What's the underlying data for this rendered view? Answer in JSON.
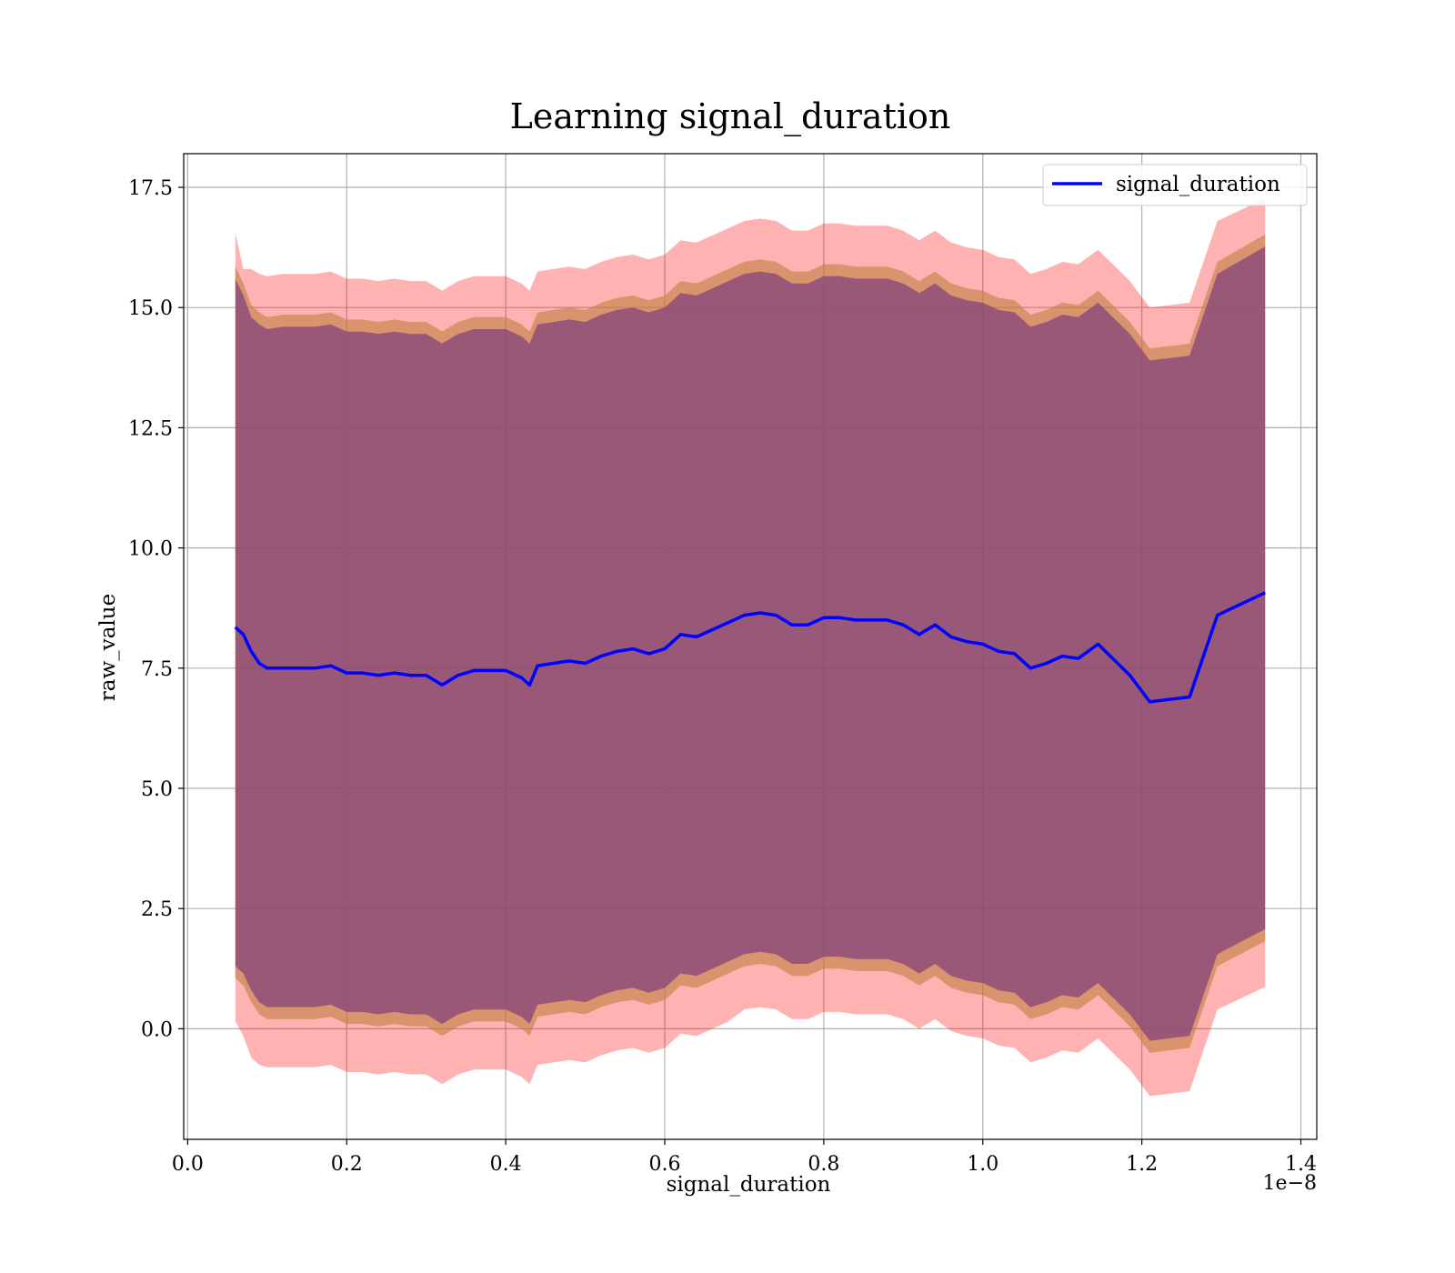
{
  "chart_data": {
    "type": "line",
    "title": "Learning signal_duration",
    "xlabel": "signal_duration",
    "ylabel": "raw_value",
    "x_offset_label": "1e−8",
    "xlim": [
      -0.005,
      1.42
    ],
    "ylim": [
      -2.3,
      18.2
    ],
    "x_ticks": [
      0.0,
      0.2,
      0.4,
      0.6,
      0.8,
      1.0,
      1.2,
      1.4
    ],
    "x_tick_labels": [
      "0.0",
      "0.2",
      "0.4",
      "0.6",
      "0.8",
      "1.0",
      "1.2",
      "1.4"
    ],
    "y_ticks": [
      0.0,
      2.5,
      5.0,
      7.5,
      10.0,
      12.5,
      15.0,
      17.5
    ],
    "y_tick_labels": [
      "0.0",
      "2.5",
      "5.0",
      "7.5",
      "10.0",
      "12.5",
      "15.0",
      "17.5"
    ],
    "grid": true,
    "legend_position": "top-right",
    "colors": {
      "line": "#0000ff",
      "band_outer": "#ff0000",
      "band_middle": "#bf7f3f",
      "band_inner": "#7f3f7f"
    },
    "series": [
      {
        "name": "signal_duration",
        "x": [
          0.06,
          0.07,
          0.08,
          0.09,
          0.1,
          0.12,
          0.14,
          0.16,
          0.18,
          0.2,
          0.22,
          0.24,
          0.26,
          0.28,
          0.3,
          0.32,
          0.34,
          0.36,
          0.38,
          0.4,
          0.42,
          0.43,
          0.44,
          0.46,
          0.48,
          0.5,
          0.52,
          0.54,
          0.56,
          0.58,
          0.6,
          0.62,
          0.64,
          0.66,
          0.68,
          0.7,
          0.72,
          0.74,
          0.76,
          0.78,
          0.8,
          0.82,
          0.84,
          0.86,
          0.88,
          0.9,
          0.92,
          0.94,
          0.96,
          0.98,
          1.0,
          1.02,
          1.04,
          1.06,
          1.08,
          1.1,
          1.12,
          1.145,
          1.185,
          1.21,
          1.26,
          1.295,
          1.355
        ],
        "y": [
          8.35,
          8.2,
          7.85,
          7.6,
          7.5,
          7.5,
          7.5,
          7.5,
          7.55,
          7.4,
          7.4,
          7.35,
          7.4,
          7.35,
          7.35,
          7.15,
          7.35,
          7.45,
          7.45,
          7.45,
          7.3,
          7.15,
          7.55,
          7.6,
          7.65,
          7.6,
          7.75,
          7.85,
          7.9,
          7.8,
          7.9,
          8.2,
          8.15,
          8.3,
          8.45,
          8.6,
          8.65,
          8.6,
          8.4,
          8.4,
          8.55,
          8.55,
          8.5,
          8.5,
          8.5,
          8.4,
          8.2,
          8.4,
          8.15,
          8.05,
          8.0,
          7.85,
          7.8,
          7.5,
          7.6,
          7.75,
          7.7,
          8.0,
          7.35,
          6.8,
          6.9,
          8.6,
          9.07
        ]
      }
    ],
    "bands": [
      {
        "label": "outer",
        "offset_upper": [
          8.2,
          7.6,
          7.95,
          8.1,
          8.15,
          8.2,
          8.2,
          8.2,
          8.2,
          8.2,
          8.2,
          8.2,
          8.2,
          8.2,
          8.2,
          8.2,
          8.2,
          8.2,
          8.2,
          8.2,
          8.2,
          8.2,
          8.2,
          8.2,
          8.2,
          8.2,
          8.2,
          8.2,
          8.2,
          8.2,
          8.2,
          8.2,
          8.2,
          8.2,
          8.2,
          8.2,
          8.2,
          8.2,
          8.2,
          8.2,
          8.2,
          8.2,
          8.2,
          8.2,
          8.2,
          8.2,
          8.2,
          8.2,
          8.2,
          8.2,
          8.2,
          8.2,
          8.2,
          8.2,
          8.2,
          8.2,
          8.2,
          8.2,
          8.2,
          8.2,
          8.2,
          8.2,
          8.2
        ],
        "offset_lower": [
          8.2,
          8.35,
          8.45,
          8.35,
          8.3,
          8.3,
          8.3,
          8.3,
          8.3,
          8.3,
          8.3,
          8.3,
          8.3,
          8.3,
          8.3,
          8.3,
          8.3,
          8.3,
          8.3,
          8.3,
          8.3,
          8.3,
          8.3,
          8.3,
          8.3,
          8.3,
          8.3,
          8.3,
          8.3,
          8.3,
          8.3,
          8.3,
          8.3,
          8.3,
          8.3,
          8.2,
          8.2,
          8.2,
          8.2,
          8.2,
          8.2,
          8.2,
          8.2,
          8.2,
          8.2,
          8.2,
          8.2,
          8.2,
          8.2,
          8.2,
          8.2,
          8.2,
          8.2,
          8.2,
          8.2,
          8.2,
          8.2,
          8.2,
          8.2,
          8.2,
          8.2,
          8.2,
          8.2
        ]
      },
      {
        "label": "middle",
        "offset_upper": [
          7.5,
          7.3,
          7.2,
          7.3,
          7.3,
          7.35,
          7.35,
          7.35,
          7.35,
          7.35,
          7.35,
          7.35,
          7.35,
          7.35,
          7.35,
          7.35,
          7.35,
          7.35,
          7.35,
          7.35,
          7.35,
          7.35,
          7.35,
          7.35,
          7.35,
          7.35,
          7.35,
          7.35,
          7.35,
          7.35,
          7.35,
          7.35,
          7.35,
          7.35,
          7.35,
          7.35,
          7.35,
          7.35,
          7.35,
          7.35,
          7.35,
          7.35,
          7.35,
          7.35,
          7.35,
          7.35,
          7.35,
          7.35,
          7.35,
          7.35,
          7.35,
          7.35,
          7.35,
          7.35,
          7.35,
          7.35,
          7.35,
          7.35,
          7.35,
          7.35,
          7.35,
          7.35,
          7.45
        ],
        "offset_lower": [
          7.3,
          7.3,
          7.3,
          7.3,
          7.3,
          7.3,
          7.3,
          7.3,
          7.3,
          7.3,
          7.3,
          7.3,
          7.3,
          7.3,
          7.3,
          7.3,
          7.3,
          7.3,
          7.3,
          7.3,
          7.3,
          7.3,
          7.3,
          7.3,
          7.3,
          7.3,
          7.3,
          7.3,
          7.3,
          7.3,
          7.3,
          7.3,
          7.3,
          7.3,
          7.3,
          7.3,
          7.3,
          7.3,
          7.3,
          7.3,
          7.3,
          7.3,
          7.3,
          7.3,
          7.3,
          7.3,
          7.3,
          7.3,
          7.3,
          7.3,
          7.3,
          7.3,
          7.3,
          7.3,
          7.3,
          7.3,
          7.3,
          7.3,
          7.3,
          7.3,
          7.3,
          7.3,
          7.25
        ]
      },
      {
        "label": "inner",
        "offset_upper": [
          7.25,
          7.05,
          6.95,
          7.05,
          7.05,
          7.1,
          7.1,
          7.1,
          7.1,
          7.1,
          7.1,
          7.1,
          7.1,
          7.1,
          7.1,
          7.1,
          7.1,
          7.1,
          7.1,
          7.1,
          7.1,
          7.1,
          7.1,
          7.1,
          7.1,
          7.1,
          7.1,
          7.1,
          7.1,
          7.1,
          7.1,
          7.1,
          7.1,
          7.1,
          7.1,
          7.1,
          7.1,
          7.1,
          7.1,
          7.1,
          7.1,
          7.1,
          7.1,
          7.1,
          7.1,
          7.1,
          7.1,
          7.1,
          7.1,
          7.1,
          7.1,
          7.1,
          7.1,
          7.1,
          7.1,
          7.1,
          7.1,
          7.1,
          7.1,
          7.1,
          7.1,
          7.1,
          7.2
        ],
        "offset_lower": [
          7.05,
          7.05,
          7.05,
          7.05,
          7.05,
          7.05,
          7.05,
          7.05,
          7.05,
          7.05,
          7.05,
          7.05,
          7.05,
          7.05,
          7.05,
          7.05,
          7.05,
          7.05,
          7.05,
          7.05,
          7.05,
          7.05,
          7.05,
          7.05,
          7.05,
          7.05,
          7.05,
          7.05,
          7.05,
          7.05,
          7.05,
          7.05,
          7.05,
          7.05,
          7.05,
          7.05,
          7.05,
          7.05,
          7.05,
          7.05,
          7.05,
          7.05,
          7.05,
          7.05,
          7.05,
          7.05,
          7.05,
          7.05,
          7.05,
          7.05,
          7.05,
          7.05,
          7.05,
          7.05,
          7.05,
          7.05,
          7.05,
          7.05,
          7.05,
          7.05,
          7.05,
          7.05,
          7.0
        ]
      }
    ]
  }
}
